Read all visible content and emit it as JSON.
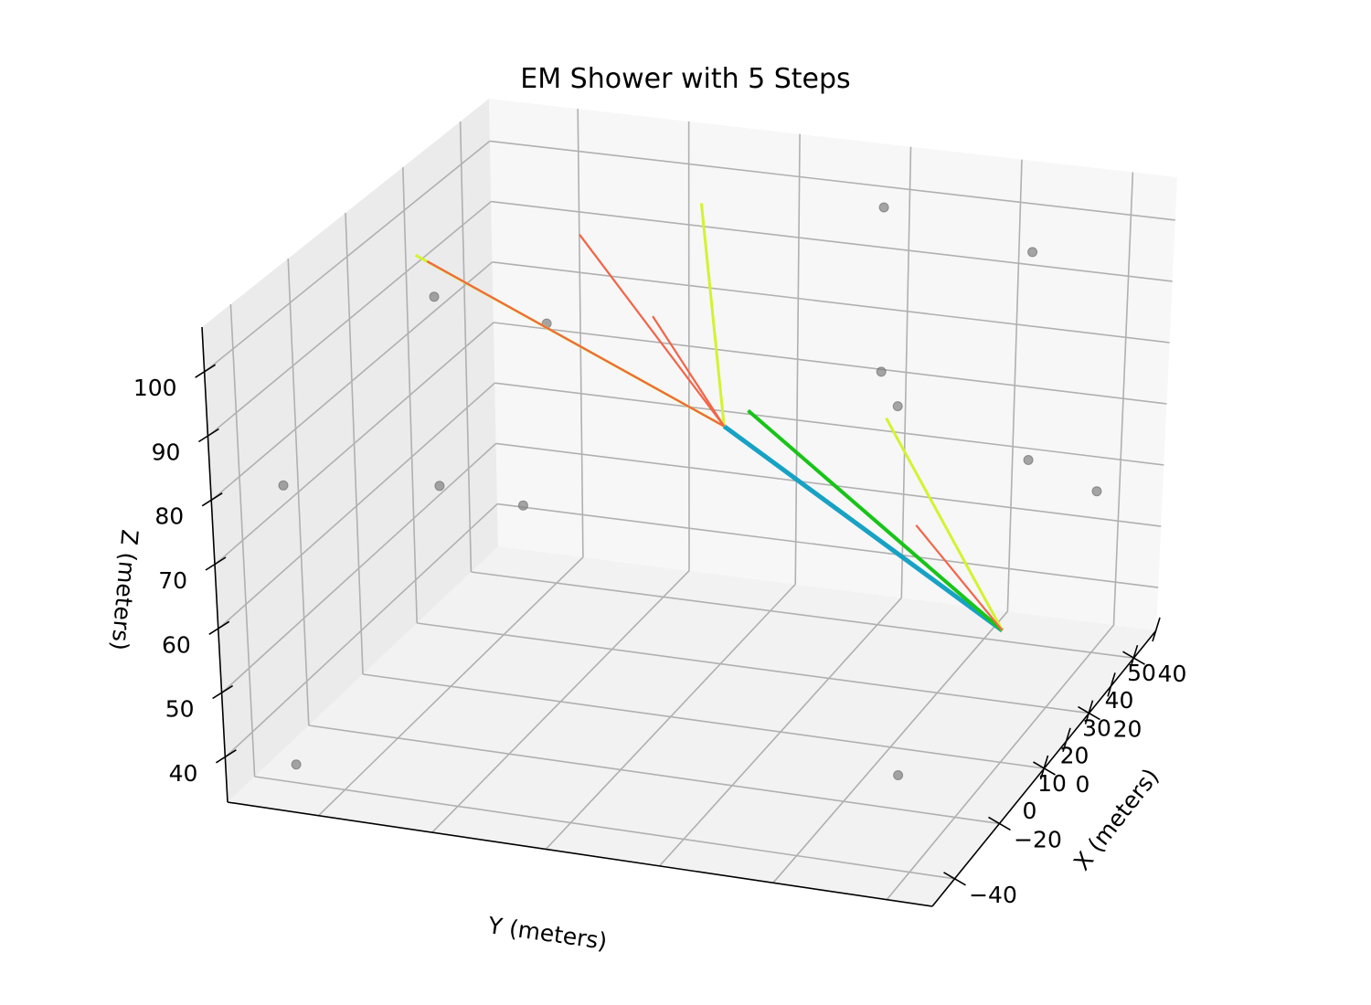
{
  "chart_data": {
    "type": "3d-line",
    "title": "EM Shower with 5 Steps",
    "xlabel": "X (meters)",
    "ylabel": "Y (meters)",
    "zlabel": "Z (meters)",
    "xlim": [
      -50,
      50
    ],
    "ylim": [
      -4,
      58
    ],
    "zlim": [
      33,
      107
    ],
    "x_ticks": [
      {
        "value": -40,
        "label": "−40"
      },
      {
        "value": -20,
        "label": "−20"
      },
      {
        "value": 0,
        "label": "0"
      },
      {
        "value": 20,
        "label": "20"
      },
      {
        "value": 40,
        "label": "40"
      }
    ],
    "y_ticks": [
      {
        "value": 0,
        "label": "0"
      },
      {
        "value": 10,
        "label": "10"
      },
      {
        "value": 20,
        "label": "20"
      },
      {
        "value": 30,
        "label": "30"
      },
      {
        "value": 40,
        "label": "40"
      },
      {
        "value": 50,
        "label": "50"
      }
    ],
    "z_ticks": [
      {
        "value": 40,
        "label": "40"
      },
      {
        "value": 50,
        "label": "50"
      },
      {
        "value": 60,
        "label": "60"
      },
      {
        "value": 70,
        "label": "70"
      },
      {
        "value": 80,
        "label": "80"
      },
      {
        "value": 90,
        "label": "90"
      },
      {
        "value": 100,
        "label": "100"
      }
    ],
    "grid": true,
    "colors": {
      "primary": "#17a2c4",
      "secondary": "#18c418",
      "electron": "#d4f230",
      "photon": "#f36448",
      "points": "#808080"
    },
    "tracks": [
      {
        "color": "#17a2c4",
        "start": [
          0,
          0,
          50
        ],
        "end": [
          0,
          25,
          75
        ],
        "width": 5
      },
      {
        "color": "#18c418",
        "start": [
          0,
          0,
          50
        ],
        "end": [
          5,
          24,
          76
        ],
        "width": 4
      },
      {
        "color": "#d4f230",
        "start": [
          0,
          25,
          75
        ],
        "end": [
          0,
          52,
          100
        ],
        "width": 3
      },
      {
        "color": "#d4f230",
        "start": [
          0,
          25,
          75
        ],
        "end": [
          30,
          34,
          100
        ],
        "width": 3
      },
      {
        "color": "#f36448",
        "start": [
          0,
          25,
          75
        ],
        "end": [
          0,
          51,
          99
        ],
        "width": 2.2
      },
      {
        "color": "#f36448",
        "start": [
          0,
          25,
          75
        ],
        "end": [
          10,
          40,
          100
        ],
        "width": 2.2
      },
      {
        "color": "#f36448",
        "start": [
          0,
          25,
          75
        ],
        "end": [
          20,
          36,
          85
        ],
        "width": 2.2
      },
      {
        "color": "#d4f230",
        "start": [
          0,
          0,
          50
        ],
        "end": [
          20,
          15,
          72
        ],
        "width": 3
      },
      {
        "color": "#f36448",
        "start": [
          0,
          0,
          50
        ],
        "end": [
          10,
          10,
          60
        ],
        "width": 2.2
      }
    ],
    "points": [
      [
        -45,
        53,
        38
      ],
      [
        -45,
        53,
        80
      ],
      [
        10,
        53,
        90
      ],
      [
        10,
        53,
        60
      ],
      [
        -45,
        0,
        45
      ],
      [
        -45,
        0,
        85
      ],
      [
        10,
        0,
        70
      ],
      [
        10,
        0,
        98
      ],
      [
        40,
        20,
        99
      ],
      [
        40,
        20,
        73
      ],
      [
        -45,
        30,
        99
      ],
      [
        40,
        0,
        58
      ],
      [
        40,
        53,
        45
      ]
    ]
  }
}
